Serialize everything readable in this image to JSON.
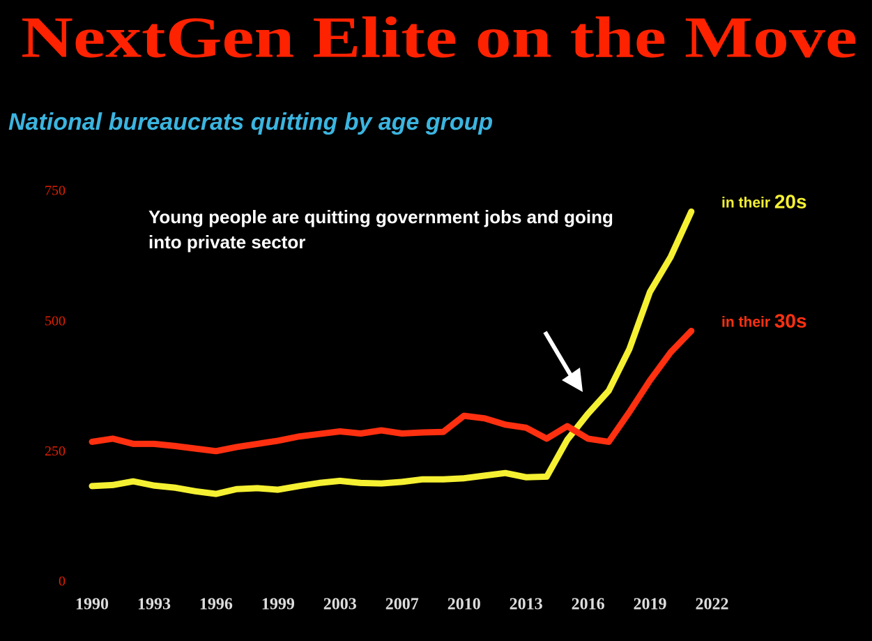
{
  "chart_data": {
    "type": "line",
    "title": "NextGen Elite on the Move",
    "subtitle": "National bureaucrats quitting by age group",
    "annotation": "Young people are quitting government jobs and going into private sector",
    "categories": [
      "1990",
      null,
      null,
      "1993",
      null,
      null,
      "1996",
      null,
      null,
      "1999",
      null,
      null,
      "2003",
      null,
      null,
      "2007",
      null,
      null,
      "2010",
      null,
      null,
      "2013",
      null,
      null,
      "2016",
      null,
      null,
      "2019",
      null,
      null,
      "2022"
    ],
    "series": [
      {
        "name": "in their 20s",
        "color": "#f5f032",
        "values": [
          185,
          187,
          194,
          186,
          182,
          175,
          170,
          179,
          181,
          178,
          185,
          191,
          195,
          191,
          190,
          193,
          198,
          198,
          200,
          205,
          210,
          202,
          203,
          274,
          324,
          368,
          448,
          558,
          625,
          712,
          null
        ]
      },
      {
        "name": "in their 30s",
        "color": "#ff3010",
        "values": [
          270,
          276,
          266,
          266,
          262,
          257,
          252,
          260,
          266,
          272,
          280,
          285,
          290,
          286,
          292,
          286,
          288,
          289,
          320,
          315,
          303,
          297,
          276,
          300,
          276,
          270,
          327,
          388,
          442,
          483,
          null
        ]
      }
    ],
    "ylim": [
      0,
      750
    ],
    "yticks": [
      0,
      250,
      500,
      750
    ],
    "grid": false
  }
}
